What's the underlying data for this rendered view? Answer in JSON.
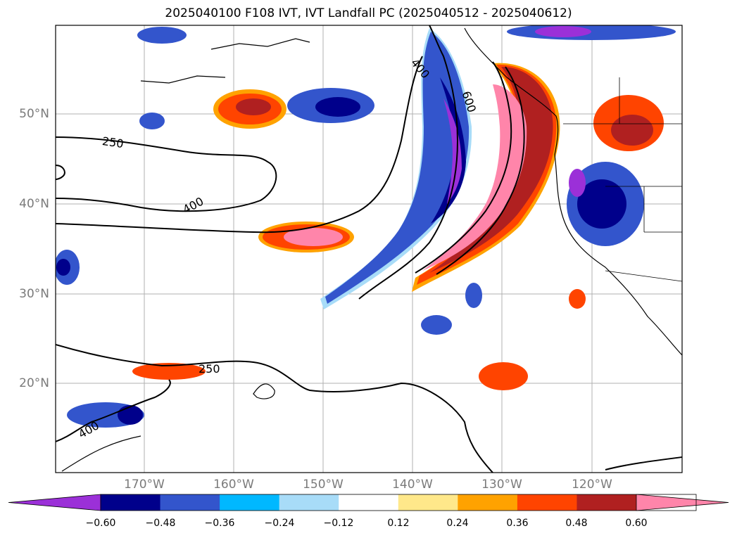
{
  "title": "2025040100 F108 IVT, IVT Landfall PC (2025040512 - 2025040612)",
  "map": {
    "lon_labels": [
      "170°W",
      "160°W",
      "150°W",
      "140°W",
      "130°W",
      "120°W"
    ],
    "lat_labels": [
      "50°N",
      "40°N",
      "30°N",
      "20°N"
    ],
    "contour_labels": [
      "250",
      "400",
      "250",
      "400",
      "600",
      "400"
    ],
    "colors": {
      "land_outline": "#000000",
      "grid": "#b0b0b0",
      "contour": "#000000"
    }
  },
  "colorbar": {
    "ticks": [
      "−0.60",
      "−0.48",
      "−0.36",
      "−0.24",
      "−0.12",
      "0.12",
      "0.24",
      "0.36",
      "0.48",
      "0.60"
    ],
    "colors": [
      "#9b30d8",
      "#00008b",
      "#3355cc",
      "#00b8ff",
      "#a8dcf8",
      "#ffffff",
      "#ffe88a",
      "#ffa200",
      "#ff4400",
      "#b02020",
      "#ff85aa"
    ]
  },
  "fields": {
    "neg_purple": "#9b30d8",
    "neg_navy": "#00008b",
    "neg_blue": "#3355cc",
    "neg_cyan": "#00b8ff",
    "neg_lightblue": "#a8dcf8",
    "pos_yellow": "#ffe88a",
    "pos_orange": "#ffa200",
    "pos_redorange": "#ff4400",
    "pos_darkred": "#b02020",
    "pos_pink": "#ff85aa"
  }
}
